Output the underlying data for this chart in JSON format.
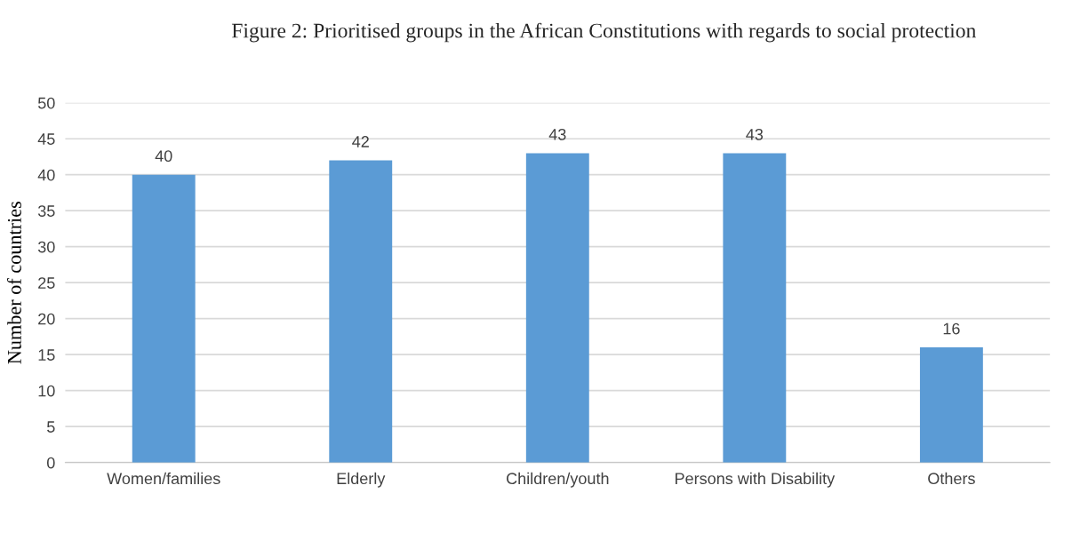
{
  "chart_data": {
    "type": "bar",
    "title": "Figure 2: Prioritised groups in the African Constitutions with regards to social protection",
    "ylabel": "Number of countries",
    "categories": [
      "Women/families",
      "Elderly",
      "Children/youth",
      "Persons with Disability",
      "Others"
    ],
    "values": [
      40,
      42,
      43,
      43,
      16
    ],
    "color": "#5b9bd5",
    "ylim": [
      0,
      50
    ],
    "yticks": [
      0,
      5,
      10,
      15,
      20,
      25,
      30,
      35,
      40,
      45,
      50
    ],
    "grid": "y",
    "data_labels": true
  }
}
